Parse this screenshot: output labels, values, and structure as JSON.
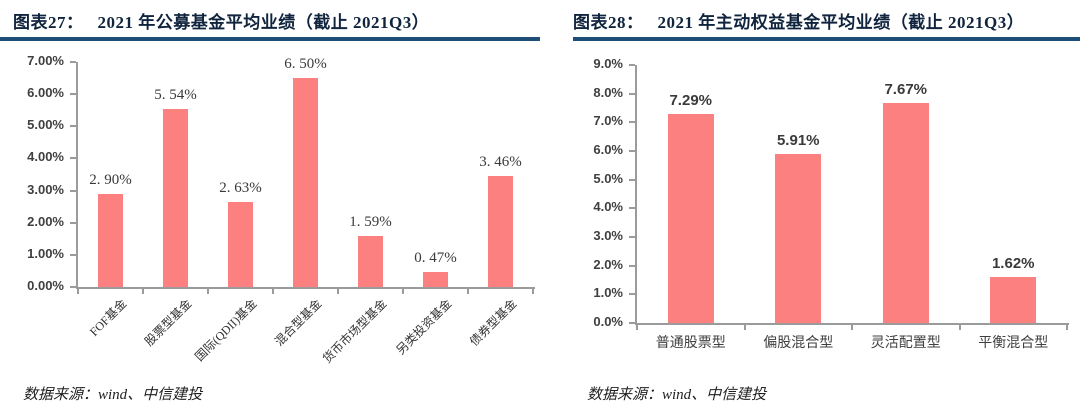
{
  "panels": [
    {
      "figure_no": "图表27：",
      "title": "2021 年公募基金平均业绩（截止 2021Q3）",
      "source": "数据来源：wind、中信建投"
    },
    {
      "figure_no": "图表28：",
      "title": "2021 年主动权益基金平均业绩（截止 2021Q3）",
      "source": "数据来源：wind、中信建投"
    }
  ],
  "colors": {
    "bar_fill": "#FC8080",
    "title_text": "#10243E",
    "title_rule": "#1F4E79",
    "axis_line": "#9B9B9B",
    "axis_text": "#3F3F3F"
  },
  "chart_data": [
    {
      "type": "bar",
      "title": "2021 年公募基金平均业绩（截止 2021Q3）",
      "categories": [
        "FOF基金",
        "股票型基金",
        "国际(QDII)基金",
        "混合型基金",
        "货币市场型基金",
        "另类投资基金",
        "债券型基金"
      ],
      "values": [
        2.9,
        5.54,
        2.63,
        6.5,
        1.59,
        0.47,
        3.46
      ],
      "data_labels": [
        "2. 90%",
        "5. 54%",
        "2. 63%",
        "6. 50%",
        "1. 59%",
        "0. 47%",
        "3. 46%"
      ],
      "xlabel": "",
      "ylabel": "",
      "ylim": [
        0,
        7
      ],
      "ytick_labels": [
        "0.00%",
        "1.00%",
        "2.00%",
        "3.00%",
        "4.00%",
        "5.00%",
        "6.00%",
        "7.00%"
      ],
      "grid": false,
      "legend_position": "none",
      "bar_color": "#FC8080",
      "category_label_rotation_deg": 45
    },
    {
      "type": "bar",
      "title": "2021 年主动权益基金平均业绩（截止 2021Q3）",
      "categories": [
        "普通股票型",
        "偏股混合型",
        "灵活配置型",
        "平衡混合型"
      ],
      "values": [
        7.29,
        5.91,
        7.67,
        1.62
      ],
      "data_labels": [
        "7.29%",
        "5.91%",
        "7.67%",
        "1.62%"
      ],
      "xlabel": "",
      "ylabel": "",
      "ylim": [
        0,
        9
      ],
      "ytick_labels": [
        "0.0%",
        "1.0%",
        "2.0%",
        "3.0%",
        "4.0%",
        "5.0%",
        "6.0%",
        "7.0%",
        "8.0%",
        "9.0%"
      ],
      "grid": false,
      "legend_position": "none",
      "bar_color": "#FC8080",
      "category_label_rotation_deg": 0
    }
  ]
}
